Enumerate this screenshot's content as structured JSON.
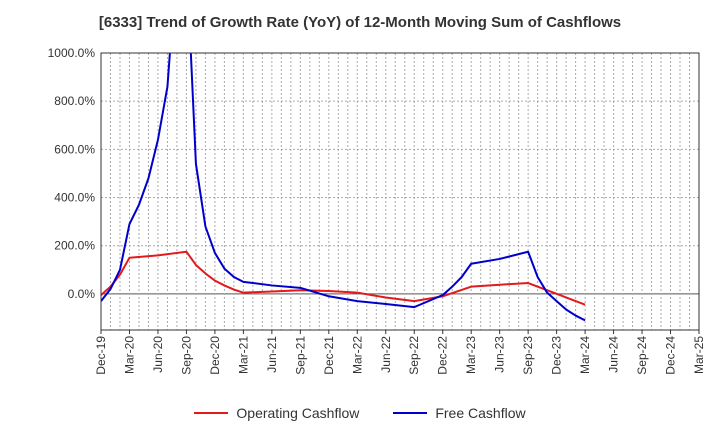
{
  "chart_data": {
    "type": "line",
    "title": "[6333]  Trend of Growth Rate (YoY) of 12-Month Moving Sum of Cashflows",
    "xlabel": "",
    "ylabel": "",
    "ylim": [
      -150,
      1000
    ],
    "y_ticks": [
      {
        "value": 1000,
        "label": "1000.0%"
      },
      {
        "value": 800,
        "label": "800.0%"
      },
      {
        "value": 600,
        "label": "600.0%"
      },
      {
        "value": 400,
        "label": "400.0%"
      },
      {
        "value": 200,
        "label": "200.0%"
      },
      {
        "value": 0,
        "label": "0.0%"
      }
    ],
    "x_ticks": [
      "Dec-19",
      "Mar-20",
      "Jun-20",
      "Sep-20",
      "Dec-20",
      "Mar-21",
      "Jun-21",
      "Sep-21",
      "Dec-21",
      "Mar-22",
      "Jun-22",
      "Sep-22",
      "Dec-22",
      "Mar-23",
      "Jun-23",
      "Sep-23",
      "Dec-23",
      "Mar-24",
      "Jun-24",
      "Sep-24",
      "Dec-24",
      "Mar-25"
    ],
    "x_months": [
      "Dec-19",
      "Jan-20",
      "Feb-20",
      "Mar-20",
      "Apr-20",
      "May-20",
      "Jun-20",
      "Jul-20",
      "Aug-20",
      "Sep-20",
      "Oct-20",
      "Nov-20",
      "Dec-20",
      "Jan-21",
      "Feb-21",
      "Mar-21",
      "Apr-21",
      "May-21",
      "Jun-21",
      "Jul-21",
      "Aug-21",
      "Sep-21",
      "Oct-21",
      "Nov-21",
      "Dec-21",
      "Jan-22",
      "Feb-22",
      "Mar-22",
      "Apr-22",
      "May-22",
      "Jun-22",
      "Jul-22",
      "Aug-22",
      "Sep-22",
      "Oct-22",
      "Nov-22",
      "Dec-22",
      "Jan-23",
      "Feb-23",
      "Mar-23",
      "Apr-23",
      "May-23",
      "Jun-23",
      "Jul-23",
      "Aug-23",
      "Sep-23",
      "Oct-23",
      "Nov-23",
      "Dec-23",
      "Jan-24",
      "Feb-24",
      "Mar-24",
      "Apr-24",
      "May-24",
      "Jun-24",
      "Jul-24",
      "Aug-24",
      "Sep-24",
      "Oct-24",
      "Nov-24",
      "Dec-24",
      "Jan-25",
      "Feb-25",
      "Mar-25"
    ],
    "grid": true,
    "legend_position": "bottom",
    "series": [
      {
        "name": "Operating Cashflow",
        "color": "#e31a1c",
        "points": [
          [
            "Dec-19",
            -5
          ],
          [
            "Jan-20",
            30
          ],
          [
            "Feb-20",
            80
          ],
          [
            "Mar-20",
            150
          ],
          [
            "Jun-20",
            160
          ],
          [
            "Sep-20",
            175
          ],
          [
            "Oct-20",
            120
          ],
          [
            "Nov-20",
            85
          ],
          [
            "Dec-20",
            55
          ],
          [
            "Jan-21",
            35
          ],
          [
            "Feb-21",
            18
          ],
          [
            "Mar-21",
            5
          ],
          [
            "Jun-21",
            10
          ],
          [
            "Sep-21",
            15
          ],
          [
            "Dec-21",
            12
          ],
          [
            "Mar-22",
            5
          ],
          [
            "Jun-22",
            -15
          ],
          [
            "Sep-22",
            -30
          ],
          [
            "Dec-22",
            -10
          ],
          [
            "Mar-23",
            30
          ],
          [
            "Jun-23",
            38
          ],
          [
            "Sep-23",
            45
          ],
          [
            "Dec-23",
            0
          ],
          [
            "Mar-24",
            -45
          ]
        ]
      },
      {
        "name": "Free Cashflow",
        "color": "#0000cc",
        "points": [
          [
            "Dec-19",
            -30
          ],
          [
            "Jan-20",
            20
          ],
          [
            "Feb-20",
            100
          ],
          [
            "Mar-20",
            290
          ],
          [
            "Apr-20",
            370
          ],
          [
            "May-20",
            480
          ],
          [
            "Jun-20",
            640
          ],
          [
            "Jul-20",
            860
          ],
          [
            "Aug-20",
            1400
          ],
          [
            "Sep-20",
            1400
          ],
          [
            "Oct-20",
            540
          ],
          [
            "Nov-20",
            280
          ],
          [
            "Dec-20",
            170
          ],
          [
            "Jan-21",
            105
          ],
          [
            "Feb-21",
            70
          ],
          [
            "Mar-21",
            50
          ],
          [
            "Jun-21",
            35
          ],
          [
            "Sep-21",
            25
          ],
          [
            "Dec-21",
            -10
          ],
          [
            "Mar-22",
            -30
          ],
          [
            "Jun-22",
            -42
          ],
          [
            "Sep-22",
            -55
          ],
          [
            "Dec-22",
            -5
          ],
          [
            "Jan-23",
            30
          ],
          [
            "Feb-23",
            70
          ],
          [
            "Mar-23",
            125
          ],
          [
            "Jun-23",
            145
          ],
          [
            "Aug-23",
            165
          ],
          [
            "Sep-23",
            175
          ],
          [
            "Oct-23",
            70
          ],
          [
            "Nov-23",
            5
          ],
          [
            "Dec-23",
            -30
          ],
          [
            "Jan-24",
            -65
          ],
          [
            "Feb-24",
            -90
          ],
          [
            "Mar-24",
            -110
          ]
        ]
      }
    ]
  }
}
